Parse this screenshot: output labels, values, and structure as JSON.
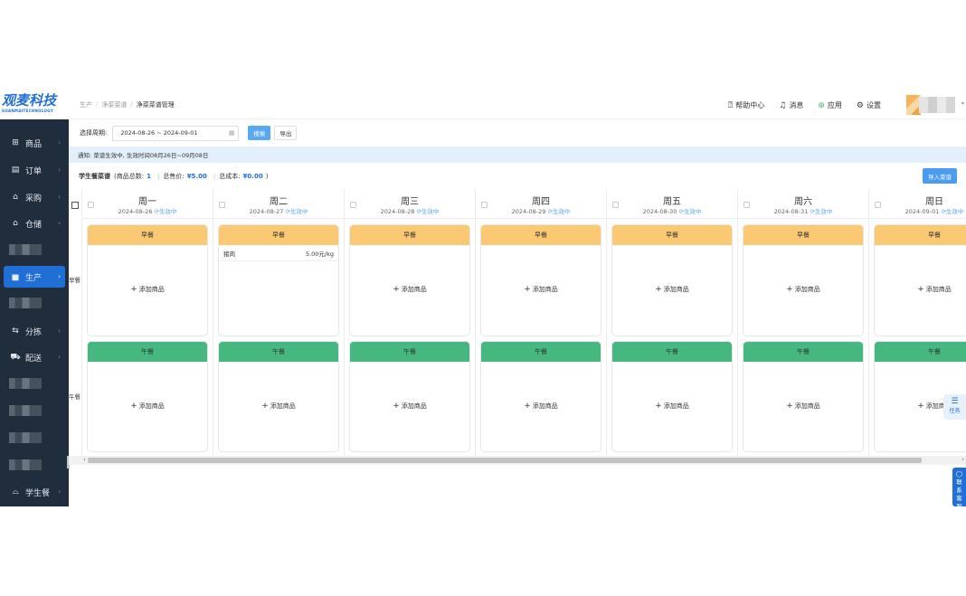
{
  "logo": {
    "title": "观麦科技",
    "subtitle": "GUANMAITECHNOLOGY"
  },
  "sidebar": {
    "items": [
      {
        "label": "商品",
        "icon": "grid-icon"
      },
      {
        "label": "订单",
        "icon": "order-icon"
      },
      {
        "label": "采购",
        "icon": "purchase-icon"
      },
      {
        "label": "仓储",
        "icon": "warehouse-icon"
      },
      {
        "label": "生产",
        "icon": "factory-icon"
      },
      {
        "label": "分拣",
        "icon": "sort-icon"
      },
      {
        "label": "配送",
        "icon": "truck-icon"
      },
      {
        "label": "学生餐",
        "icon": "meal-icon"
      }
    ]
  },
  "breadcrumb": [
    "生产",
    "净菜菜谱",
    "净菜菜谱管理"
  ],
  "topbar": {
    "help": "帮助中心",
    "messages": "消息",
    "apps": "应用",
    "settings": "设置"
  },
  "filter": {
    "label": "选择周期:",
    "date_range": "2024-08-26 ~ 2024-09-01",
    "search": "搜索",
    "export": "导出"
  },
  "notice": "通知: 菜谱生效中, 生效时间08月26日~09月08日",
  "summary": {
    "title": "学生餐菜谱",
    "count_label": "(商品总数:",
    "count": "1",
    "price_label": "总售价:",
    "price": "¥5.00",
    "cost_label": "总成本:",
    "cost": "¥0.00",
    "close": ")",
    "import_btn": "导入菜谱"
  },
  "row_labels": {
    "breakfast": "早餐",
    "lunch": "午餐"
  },
  "status": "生效中",
  "add_label": "添加商品",
  "days": [
    {
      "day": "周一",
      "date": "2024-08-26",
      "breakfast": "早餐",
      "lunch": "午餐"
    },
    {
      "day": "周二",
      "date": "2024-08-27",
      "breakfast": "早餐",
      "lunch": "午餐",
      "item": {
        "name": "猪肉",
        "price": "5.00元/kg"
      }
    },
    {
      "day": "周三",
      "date": "2024-08-28",
      "breakfast": "早餐",
      "lunch": "午餐"
    },
    {
      "day": "周四",
      "date": "2024-08-29",
      "breakfast": "早餐",
      "lunch": "午餐"
    },
    {
      "day": "周五",
      "date": "2024-08-30",
      "breakfast": "早餐",
      "lunch": "午餐"
    },
    {
      "day": "周六",
      "date": "2024-08-31",
      "breakfast": "早餐",
      "lunch": "午餐"
    },
    {
      "day": "周日",
      "date": "2024-09-01",
      "breakfast": "早餐",
      "lunch": "午餐"
    }
  ],
  "floating": {
    "task": "任务",
    "service": "联系客服"
  },
  "colors": {
    "sidebar": "#1f2d3d",
    "active": "#1f6fd6",
    "breakfast": "#fbc873",
    "lunch": "#46b77e",
    "notice": "#e3f0fb"
  }
}
